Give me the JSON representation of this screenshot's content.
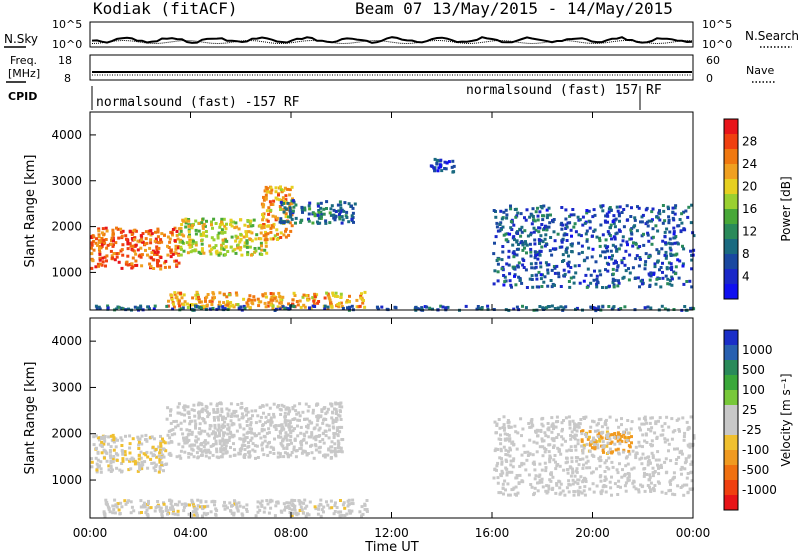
{
  "header": {
    "site": "Kodiak (fitACF)",
    "beam_dates": "Beam 07  13/May/2015 - 14/May/2015"
  },
  "aux_panels": {
    "nsky_label": "N.Sky",
    "nsearch_label": "N.Search",
    "noise_ticks_left": [
      "10^5",
      "10^0"
    ],
    "noise_ticks_right": [
      "10^5",
      "10^0"
    ],
    "freq_label": "Freq.",
    "freq_unit": "[MHz]",
    "freq_ticks": [
      "18",
      "8"
    ],
    "nave_label": "Nave",
    "nave_ticks": [
      "60",
      "0"
    ],
    "cpid_label": "CPID",
    "cpid_left": "normalsound (fast) -157 RF",
    "cpid_right": "normalsound (fast) 157 RF"
  },
  "power_panel": {
    "ylabel": "Slant Range [km]",
    "yticks": [
      "4000",
      "3000",
      "2000",
      "1000"
    ],
    "colorbar_label": "Power [dB]",
    "colorbar_ticks": [
      "28",
      "24",
      "20",
      "16",
      "12",
      "8",
      "4"
    ],
    "colorbar_colors": [
      "#e8141a",
      "#f04010",
      "#f07810",
      "#f0a020",
      "#e6d020",
      "#9ad030",
      "#48a838",
      "#2a8a5a",
      "#1a6a80",
      "#1a48a0",
      "#1a28c8",
      "#1010f0"
    ]
  },
  "velocity_panel": {
    "ylabel": "Slant Range [km]",
    "yticks": [
      "4000",
      "3000",
      "2000",
      "1000"
    ],
    "colorbar_label": "Velocity [m s⁻¹]",
    "colorbar_ticks": [
      "1000",
      "500",
      "100",
      "25",
      "-25",
      "-100",
      "-500",
      "-1000"
    ],
    "colorbar_colors": [
      "#1a2ec8",
      "#2860b0",
      "#2a8a5a",
      "#3aa83a",
      "#78c83a",
      "#c8c8c8",
      "#c8c8c8",
      "#f0c030",
      "#f09a20",
      "#f07010",
      "#f04010",
      "#e81418"
    ]
  },
  "xaxis": {
    "label": "Time UT",
    "ticks": [
      "00:00",
      "04:00",
      "08:00",
      "12:00",
      "16:00",
      "20:00",
      "00:00"
    ]
  },
  "chart_data": [
    {
      "type": "heatmap",
      "title": "Kodiak (fitACF) Beam 07 13/May/2015 - 14/May/2015",
      "panel": "power",
      "xlabel": "Time UT",
      "ylabel": "Slant Range [km]",
      "xlim": [
        "00:00",
        "24:00"
      ],
      "ylim": [
        180,
        4500
      ],
      "colorbar": {
        "label": "Power [dB]",
        "range": [
          0,
          30
        ]
      },
      "regions": [
        {
          "t_start": 0.0,
          "t_end": 3.5,
          "range_km": [
            1100,
            2000
          ],
          "value_db": 26
        },
        {
          "t_start": 3.5,
          "t_end": 7.0,
          "range_km": [
            1400,
            2200
          ],
          "value_db": 18
        },
        {
          "t_start": 6.8,
          "t_end": 8.0,
          "range_km": [
            1700,
            2900
          ],
          "value_db": 22
        },
        {
          "t_start": 7.5,
          "t_end": 10.5,
          "range_km": [
            2100,
            2600
          ],
          "value_db": 8
        },
        {
          "t_start": 3.0,
          "t_end": 11.0,
          "range_km": [
            250,
            600
          ],
          "value_db": 22
        },
        {
          "t_start": 0.0,
          "t_end": 24.0,
          "range_km": [
            200,
            300
          ],
          "value_db": 6
        },
        {
          "t_start": 16.0,
          "t_end": 24.0,
          "range_km": [
            700,
            2500
          ],
          "value_db": 6
        },
        {
          "t_start": 13.5,
          "t_end": 14.5,
          "range_km": [
            3200,
            3500
          ],
          "value_db": 4
        }
      ]
    },
    {
      "type": "heatmap",
      "panel": "velocity",
      "xlabel": "Time UT",
      "ylabel": "Slant Range [km]",
      "xlim": [
        "00:00",
        "24:00"
      ],
      "ylim": [
        180,
        4500
      ],
      "colorbar": {
        "label": "Velocity [m s⁻¹]",
        "range": [
          -1000,
          1000
        ]
      },
      "regions": [
        {
          "t_start": 0.0,
          "t_end": 3.0,
          "range_km": [
            1200,
            2000
          ],
          "value_ms": -150
        },
        {
          "t_start": 3.0,
          "t_end": 10.0,
          "range_km": [
            1500,
            2700
          ],
          "value_ms": 0
        },
        {
          "t_start": 0.5,
          "t_end": 11.0,
          "range_km": [
            250,
            600
          ],
          "value_ms": -120
        },
        {
          "t_start": 19.5,
          "t_end": 21.5,
          "range_km": [
            1600,
            2100
          ],
          "value_ms": -400
        },
        {
          "t_start": 16.0,
          "t_end": 24.0,
          "range_km": [
            700,
            2400
          ],
          "value_ms": -50
        }
      ]
    }
  ]
}
